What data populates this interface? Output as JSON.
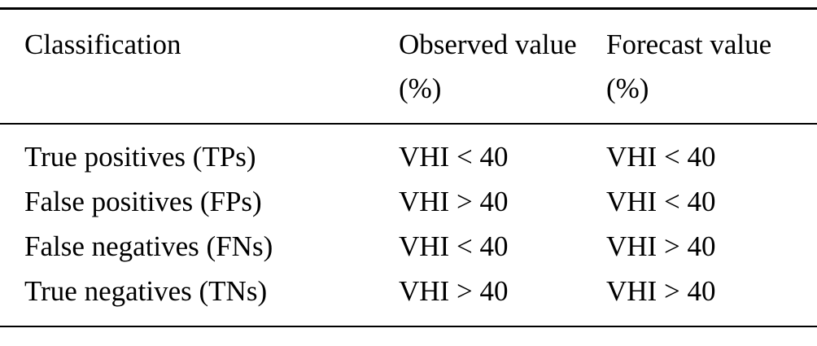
{
  "table": {
    "columns": [
      "Classification",
      "Observed value (%)",
      "Forecast value (%)"
    ],
    "rows": [
      [
        "True positives (TPs)",
        "VHI < 40",
        "VHI < 40"
      ],
      [
        "False positives (FPs)",
        "VHI > 40",
        "VHI < 40"
      ],
      [
        "False negatives (FNs)",
        "VHI < 40",
        "VHI > 40"
      ],
      [
        "True negatives (TNs)",
        "VHI > 40",
        "VHI > 40"
      ]
    ]
  },
  "chart_data": {
    "type": "table",
    "title": "",
    "columns": [
      "Classification",
      "Observed value (%)",
      "Forecast value (%)"
    ],
    "rows": [
      [
        "True positives (TPs)",
        "VHI < 40",
        "VHI < 40"
      ],
      [
        "False positives (FPs)",
        "VHI > 40",
        "VHI < 40"
      ],
      [
        "False negatives (FNs)",
        "VHI < 40",
        "VHI > 40"
      ],
      [
        "True negatives (TNs)",
        "VHI > 40",
        "VHI > 40"
      ]
    ]
  }
}
